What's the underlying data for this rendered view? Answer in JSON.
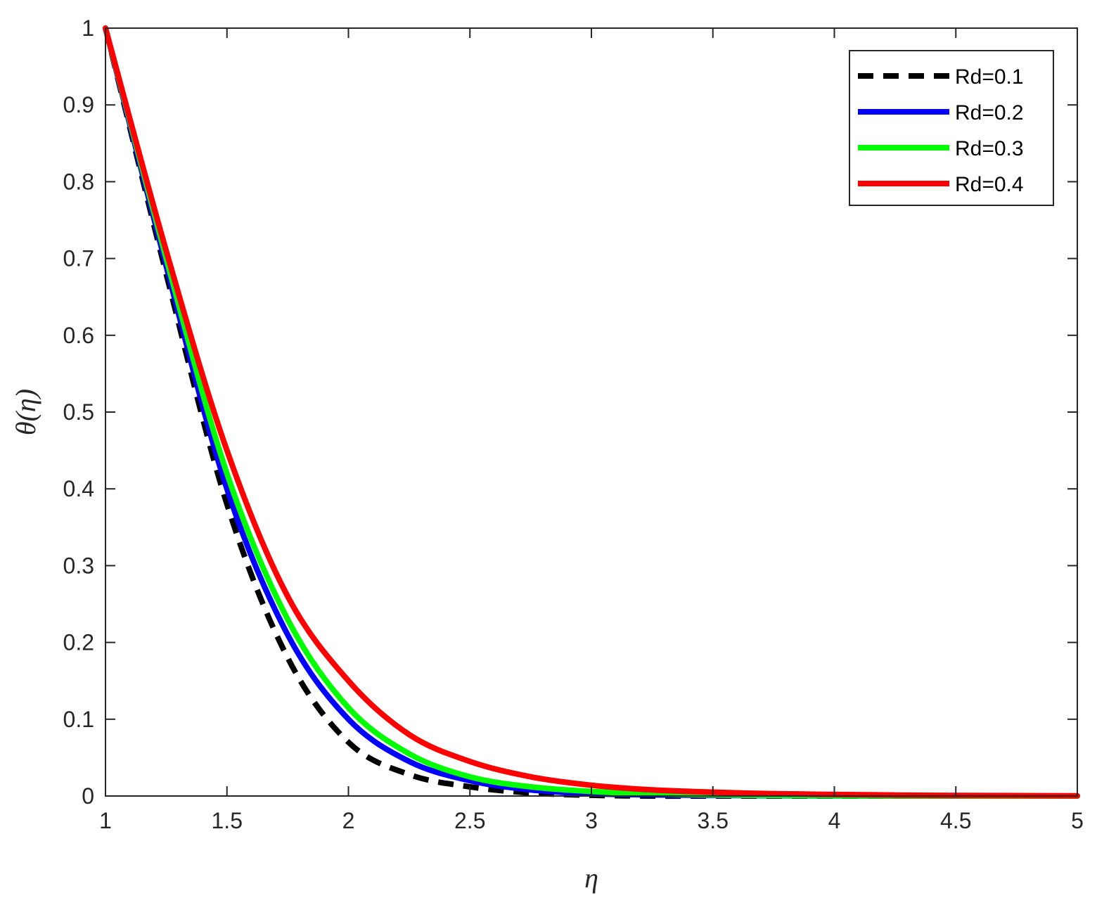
{
  "chart_data": {
    "type": "line",
    "title": "",
    "xlabel": "η",
    "ylabel": "θ(η)",
    "xlim": [
      1,
      5
    ],
    "ylim": [
      0,
      1
    ],
    "xticks": [
      1,
      1.5,
      2,
      2.5,
      3,
      3.5,
      4,
      4.5,
      5
    ],
    "yticks": [
      0,
      0.1,
      0.2,
      0.3,
      0.4,
      0.5,
      0.6,
      0.7,
      0.8,
      0.9,
      1
    ],
    "xtick_labels": [
      "1",
      "1.5",
      "2",
      "2.5",
      "3",
      "3.5",
      "4",
      "4.5",
      "5"
    ],
    "ytick_labels": [
      "0",
      "0.1",
      "0.2",
      "0.3",
      "0.4",
      "0.5",
      "0.6",
      "0.7",
      "0.8",
      "0.9",
      "1"
    ],
    "grid": false,
    "legend_position": "top-right",
    "x": [
      1,
      1.25,
      1.5,
      1.75,
      2,
      2.25,
      2.5,
      2.75,
      3,
      3.25,
      3.5,
      3.75,
      4,
      4.25,
      4.5,
      4.75,
      5
    ],
    "series": [
      {
        "name": "Rd=0.1",
        "color": "#000000",
        "dashed": true,
        "values": [
          1,
          0.68,
          0.38,
          0.18,
          0.07,
          0.028,
          0.012,
          0.004,
          0.001,
          0,
          0,
          0,
          0,
          0,
          0,
          0,
          0
        ]
      },
      {
        "name": "Rd=0.2",
        "color": "#0000ff",
        "dashed": false,
        "values": [
          1,
          0.69,
          0.4,
          0.21,
          0.1,
          0.045,
          0.02,
          0.008,
          0.003,
          0.0015,
          0.0008,
          0.0004,
          0.0002,
          0.0001,
          0,
          0,
          0
        ]
      },
      {
        "name": "Rd=0.3",
        "color": "#00ff00",
        "dashed": false,
        "values": [
          1,
          0.7,
          0.42,
          0.23,
          0.115,
          0.055,
          0.025,
          0.012,
          0.006,
          0.003,
          0.0015,
          0.0008,
          0.0004,
          0.0002,
          0.0001,
          0,
          0
        ]
      },
      {
        "name": "Rd=0.4",
        "color": "#ff0000",
        "dashed": false,
        "values": [
          1,
          0.71,
          0.45,
          0.26,
          0.15,
          0.08,
          0.045,
          0.025,
          0.014,
          0.008,
          0.005,
          0.003,
          0.002,
          0.0012,
          0.0007,
          0.0004,
          0.0002
        ]
      }
    ]
  }
}
